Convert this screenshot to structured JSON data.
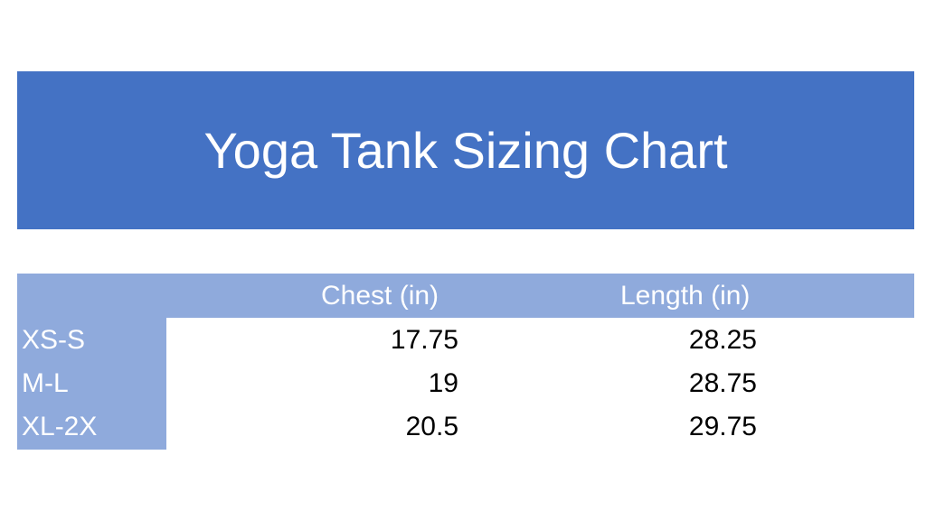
{
  "title": "Yoga Tank Sizing Chart",
  "headers": [
    "Chest (in)",
    "Length (in)"
  ],
  "rows": [
    {
      "size": "XS-S",
      "chest": "17.75",
      "length": "28.25"
    },
    {
      "size": "M-L",
      "chest": "19",
      "length": "28.75"
    },
    {
      "size": "XL-2X",
      "chest": "20.5",
      "length": "29.75"
    }
  ],
  "colors": {
    "banner": "#4472c4",
    "header": "#8faadc"
  }
}
